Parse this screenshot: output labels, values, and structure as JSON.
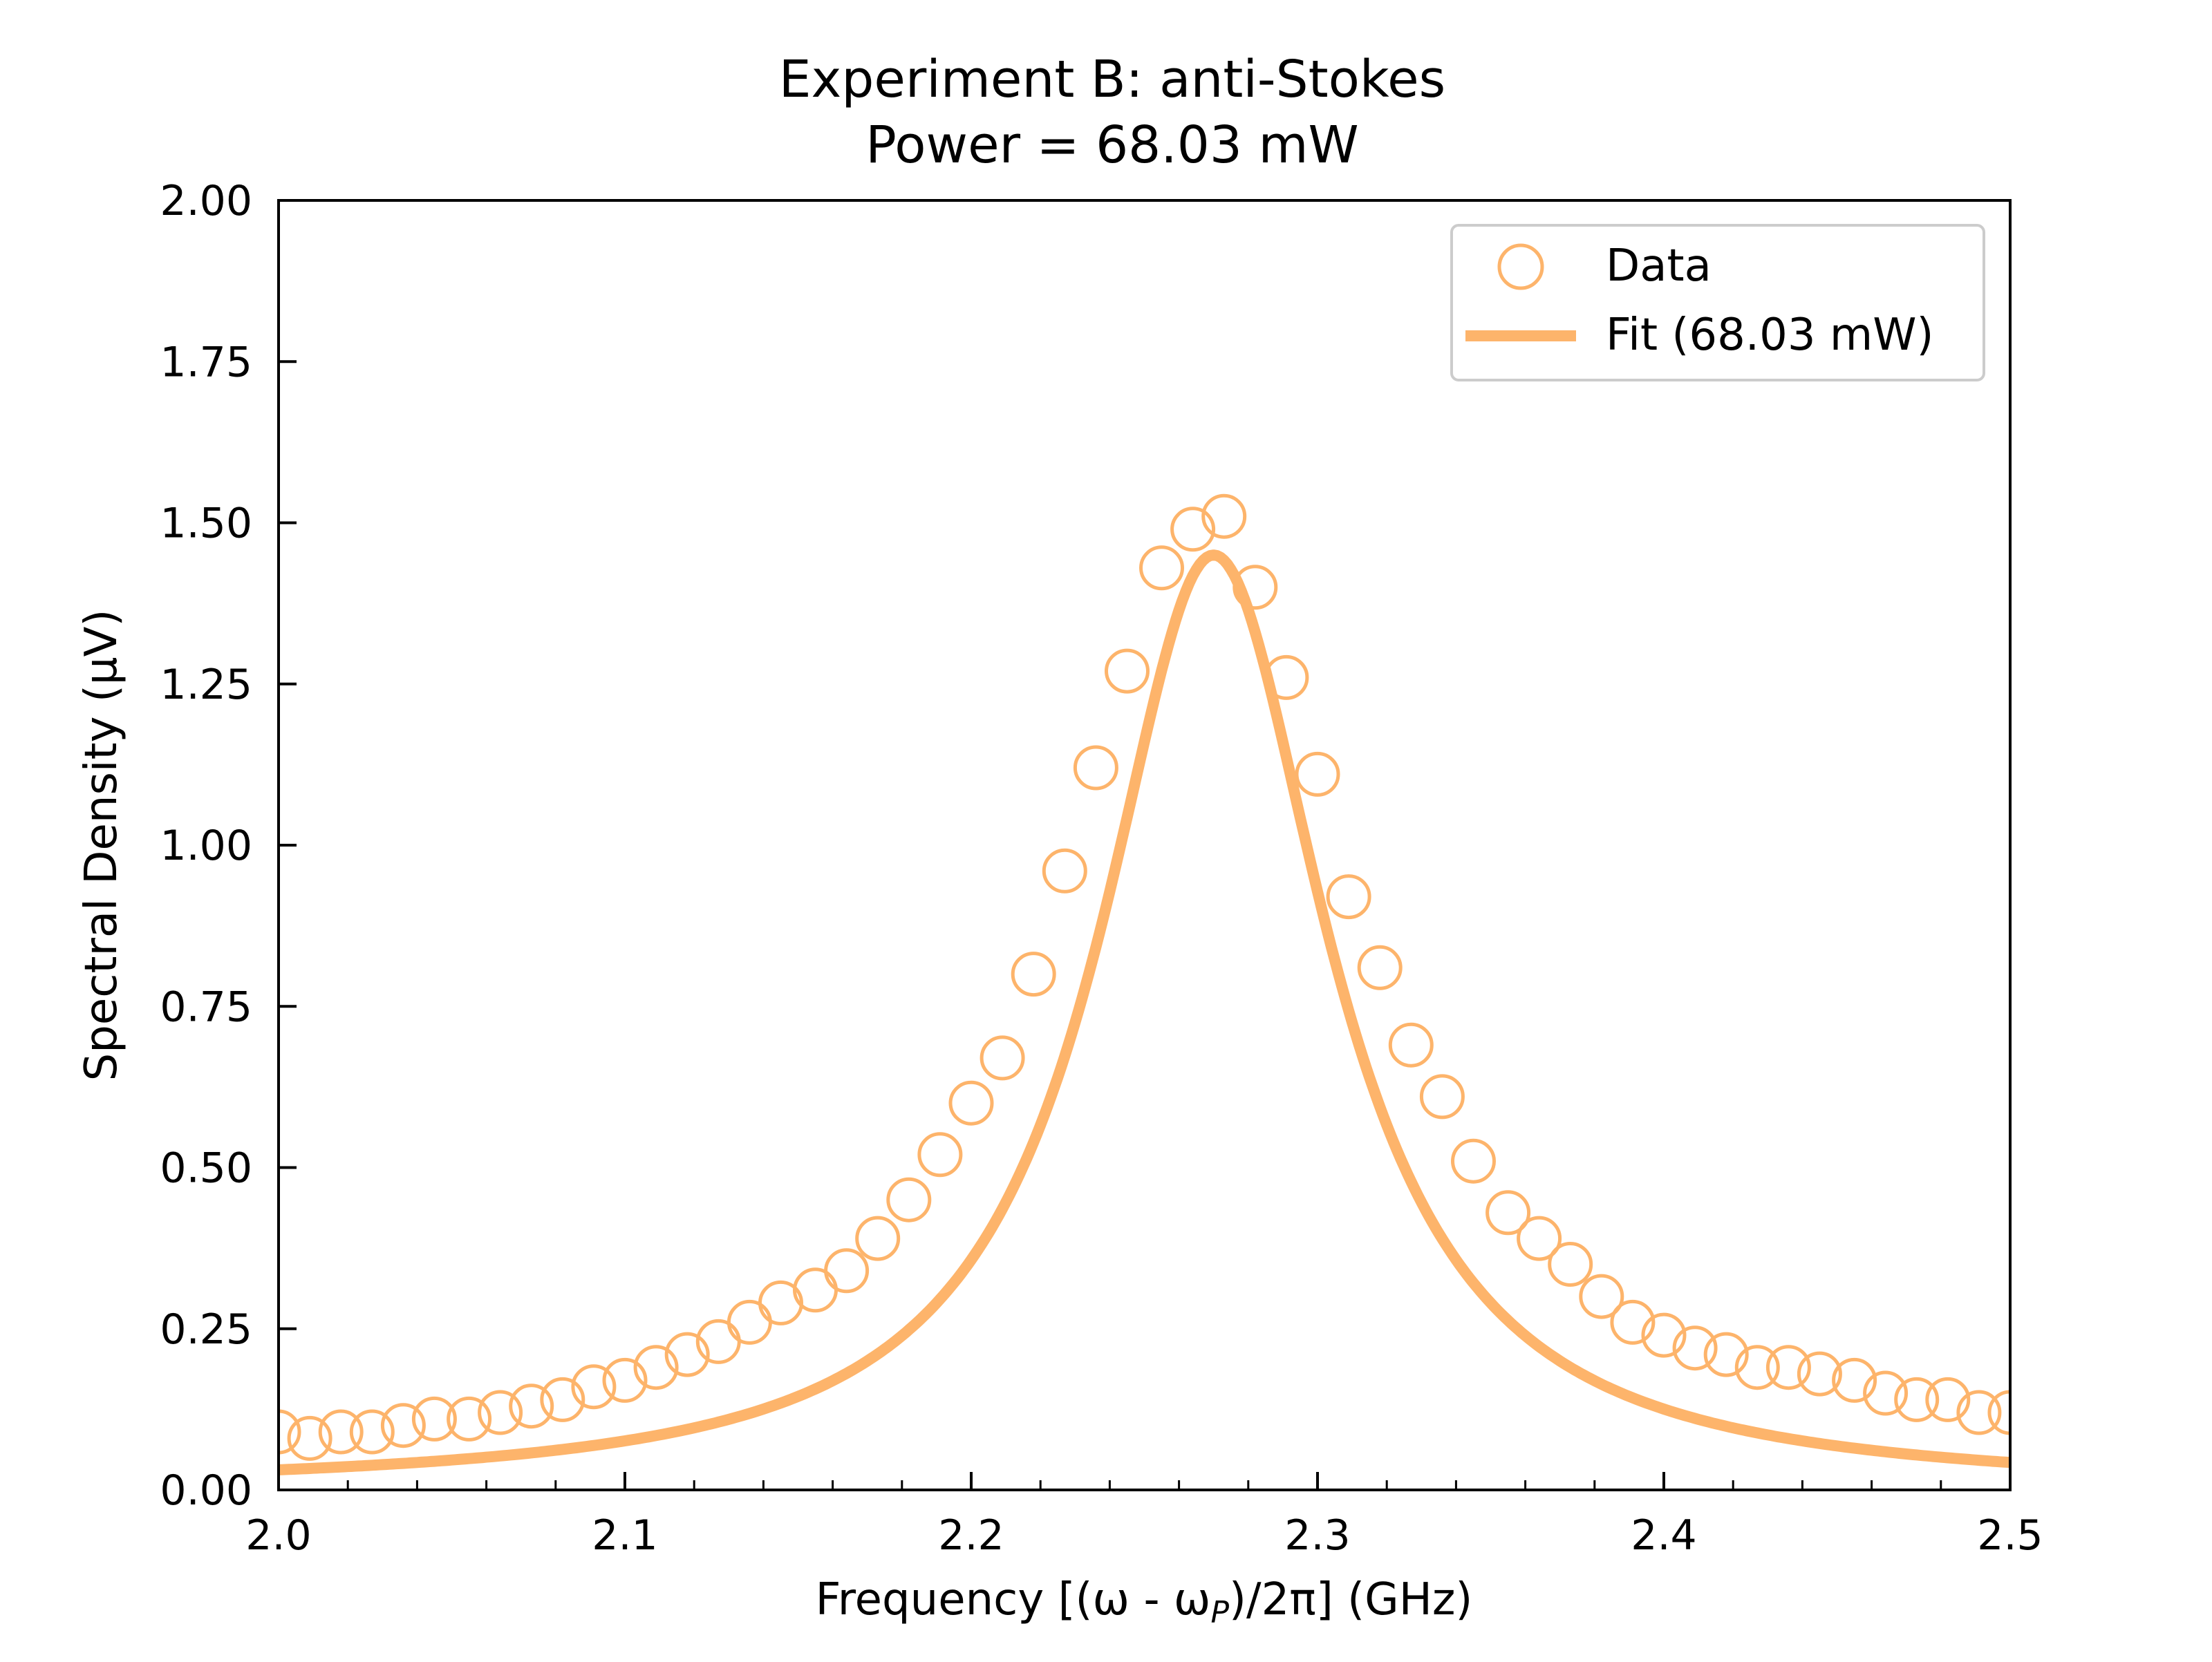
{
  "chart_data": {
    "type": "scatter",
    "title_line1": "Experiment B: anti-Stokes",
    "title_line2": "Power = 68.03 mW",
    "xlabel_main": "Frequency [(ω - ω",
    "xlabel_sub": "P",
    "xlabel_tail": ")/2π] (GHz)",
    "ylabel": "Spectral Density (μV)",
    "xlim": [
      2.0,
      2.5
    ],
    "ylim": [
      0.0,
      2.0
    ],
    "x_ticks": [
      "2.0",
      "2.1",
      "2.2",
      "2.3",
      "2.4",
      "2.5"
    ],
    "y_ticks": [
      "0.00",
      "0.25",
      "0.50",
      "0.75",
      "1.00",
      "1.25",
      "1.50",
      "1.75",
      "2.00"
    ],
    "grid": false,
    "legend_position": "top-right",
    "color": "#fdb46b",
    "series": [
      {
        "name": "Data",
        "kind": "markers",
        "x": [
          2.0,
          2.009,
          2.018,
          2.027,
          2.036,
          2.045,
          2.055,
          2.064,
          2.073,
          2.082,
          2.091,
          2.1,
          2.109,
          2.118,
          2.127,
          2.136,
          2.145,
          2.155,
          2.164,
          2.173,
          2.182,
          2.191,
          2.2,
          2.209,
          2.218,
          2.227,
          2.236,
          2.245,
          2.255,
          2.264,
          2.273,
          2.282,
          2.291,
          2.3,
          2.309,
          2.318,
          2.327,
          2.336,
          2.345,
          2.355,
          2.364,
          2.373,
          2.382,
          2.391,
          2.4,
          2.409,
          2.418,
          2.427,
          2.436,
          2.445,
          2.455,
          2.464,
          2.473,
          2.482,
          2.491,
          2.5
        ],
        "y": [
          0.09,
          0.08,
          0.09,
          0.09,
          0.1,
          0.11,
          0.11,
          0.12,
          0.13,
          0.14,
          0.16,
          0.17,
          0.19,
          0.21,
          0.23,
          0.26,
          0.29,
          0.31,
          0.34,
          0.39,
          0.45,
          0.52,
          0.6,
          0.67,
          0.8,
          0.96,
          1.12,
          1.27,
          1.43,
          1.49,
          1.51,
          1.4,
          1.26,
          1.11,
          0.92,
          0.81,
          0.69,
          0.61,
          0.51,
          0.43,
          0.39,
          0.35,
          0.3,
          0.26,
          0.24,
          0.22,
          0.21,
          0.19,
          0.19,
          0.18,
          0.17,
          0.15,
          0.14,
          0.14,
          0.12,
          0.12
        ]
      },
      {
        "name": "Fit (68.03 mW)",
        "kind": "line",
        "model": {
          "peak": 1.45,
          "center": 2.27,
          "hwhm": 0.04
        }
      }
    ]
  }
}
